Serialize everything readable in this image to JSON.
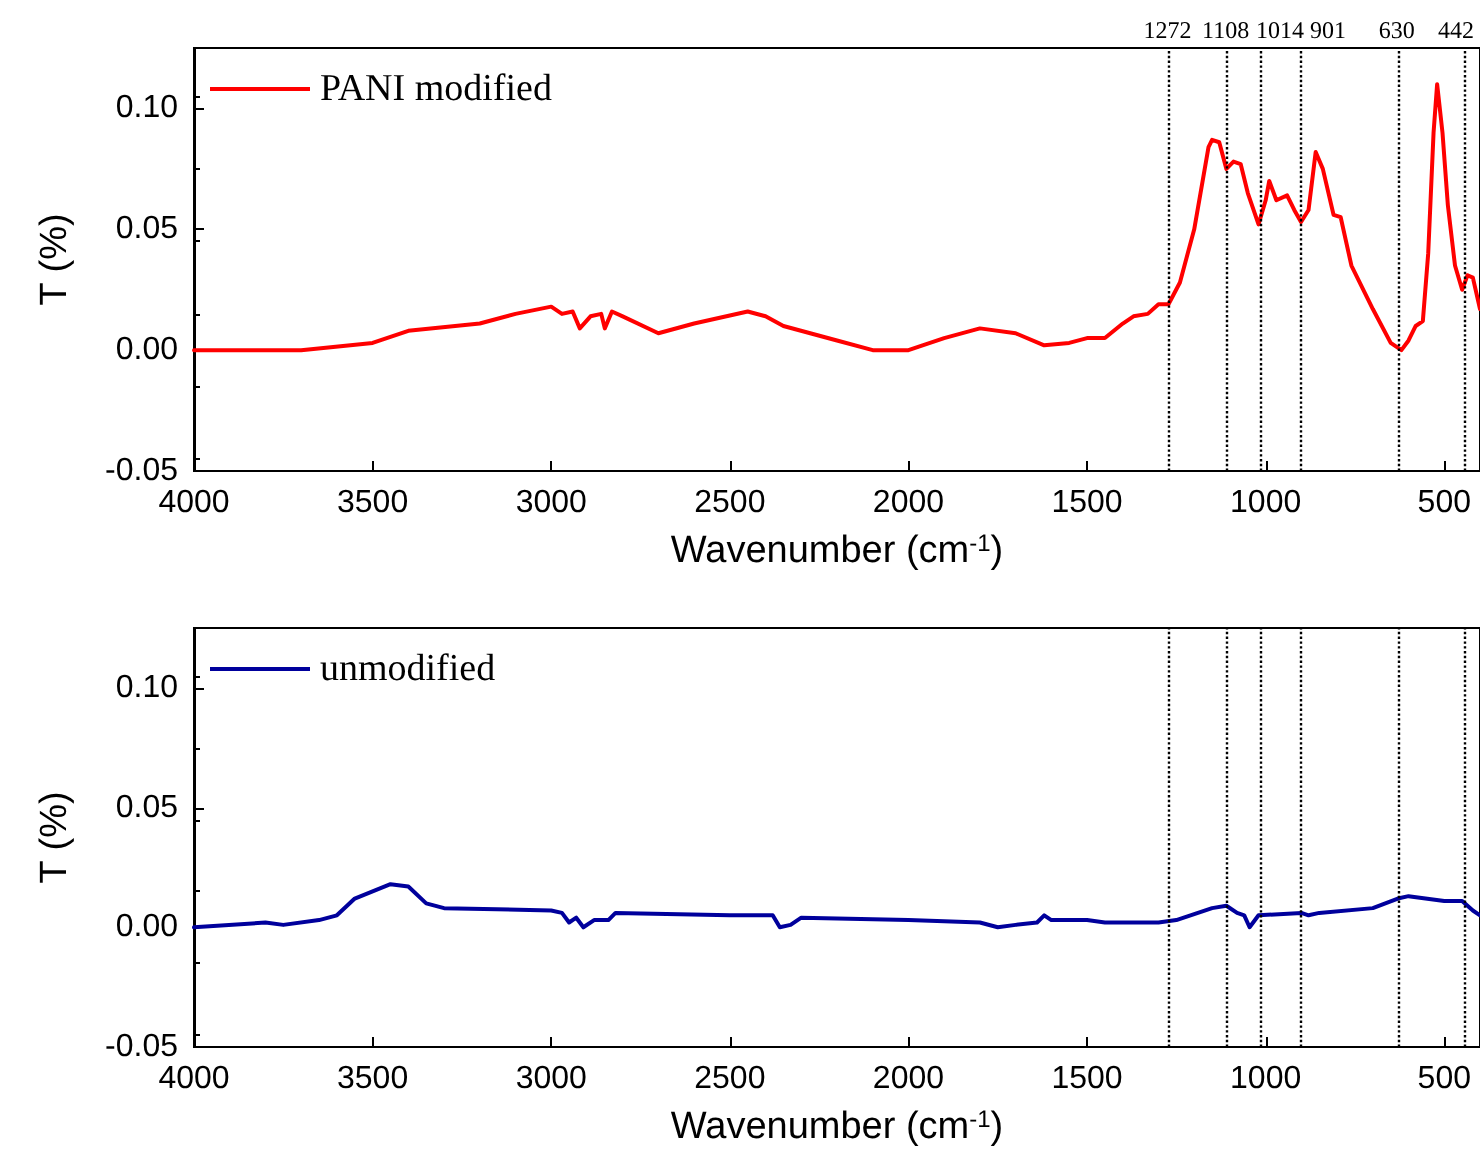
{
  "chart_data": [
    {
      "type": "line",
      "xlabel": "Wavenumber (cm$^{-1}$)",
      "ylabel": "T (%)",
      "legend": "top left",
      "grid": false,
      "marker": "none",
      "line_style": "solid",
      "xlim": [
        4000,
        400
      ],
      "xticks": [
        4000,
        3500,
        3000,
        2500,
        2000,
        1500,
        1000,
        500
      ],
      "ylim": [
        -0.05,
        0.125
      ],
      "yticks": [
        {
          "value": -0.05,
          "label": "-0.05"
        },
        {
          "value": 0,
          "label": "0.00"
        },
        {
          "value": 0.05,
          "label": "0.05"
        },
        {
          "value": 0.1,
          "label": "0.10"
        }
      ],
      "series": [
        {
          "name": "PANI modified",
          "color": "#ff0000",
          "x": [
            4000,
            3700,
            3500,
            3400,
            3200,
            3100,
            3000,
            2970,
            2940,
            2920,
            2890,
            2860,
            2850,
            2830,
            2800,
            2700,
            2600,
            2450,
            2400,
            2350,
            2200,
            2100,
            2000,
            1900,
            1800,
            1700,
            1620,
            1550,
            1500,
            1450,
            1400,
            1370,
            1330,
            1300,
            1272,
            1240,
            1200,
            1160,
            1150,
            1130,
            1110,
            1090,
            1070,
            1050,
            1020,
            1000,
            990,
            970,
            940,
            920,
            901,
            880,
            860,
            840,
            810,
            790,
            760,
            700,
            650,
            620,
            600,
            580,
            560,
            545,
            530,
            520,
            505,
            490,
            470,
            450,
            435,
            420,
            400
          ],
          "values": [
            0,
            0,
            0.003,
            0.008,
            0.011,
            0.015,
            0.018,
            0.015,
            0.016,
            0.009,
            0.014,
            0.015,
            0.009,
            0.016,
            0.014,
            0.007,
            0.011,
            0.016,
            0.014,
            0.01,
            0.004,
            0,
            0,
            0.005,
            0.009,
            0.007,
            0.002,
            0.003,
            0.005,
            0.005,
            0.011,
            0.014,
            0.015,
            0.019,
            0.019,
            0.028,
            0.05,
            0.084,
            0.087,
            0.086,
            0.075,
            0.078,
            0.077,
            0.065,
            0.052,
            0.062,
            0.07,
            0.062,
            0.064,
            0.058,
            0.053,
            0.058,
            0.082,
            0.075,
            0.056,
            0.055,
            0.035,
            0.017,
            0.003,
            0,
            0.004,
            0.01,
            0.012,
            0.04,
            0.09,
            0.11,
            0.09,
            0.06,
            0.035,
            0.025,
            0.031,
            0.03,
            0.017
          ]
        }
      ],
      "ref_lines": [
        {
          "axis": "x",
          "value": 1272,
          "label": "1272",
          "color": "#000000",
          "line_style": "dotted"
        },
        {
          "axis": "x",
          "value": 1108,
          "label": "1108",
          "color": "#000000",
          "line_style": "dotted"
        },
        {
          "axis": "x",
          "value": 1014,
          "label": "1014",
          "color": "#000000",
          "line_style": "dotted"
        },
        {
          "axis": "x",
          "value": 901,
          "label": "901",
          "color": "#000000",
          "line_style": "dotted"
        },
        {
          "axis": "x",
          "value": 630,
          "label": "630",
          "color": "#000000",
          "line_style": "dotted"
        },
        {
          "axis": "x",
          "value": 442,
          "label": "442",
          "color": "#000000",
          "line_style": "dotted"
        }
      ]
    },
    {
      "type": "line",
      "xlabel": "Wavenumber (cm$^{-1}$)",
      "ylabel": "T (%)",
      "legend": "top left",
      "grid": false,
      "marker": "none",
      "line_style": "solid",
      "xlim": [
        4000,
        400
      ],
      "xticks": [
        4000,
        3500,
        3000,
        2500,
        2000,
        1500,
        1000,
        500
      ],
      "ylim": [
        -0.05,
        0.125
      ],
      "yticks": [
        {
          "value": -0.05,
          "label": "-0.05"
        },
        {
          "value": 0,
          "label": "0.00"
        },
        {
          "value": 0.05,
          "label": "0.05"
        },
        {
          "value": 0.1,
          "label": "0.10"
        }
      ],
      "series": [
        {
          "name": "unmodified",
          "color": "#00009c",
          "x": [
            4000,
            3800,
            3750,
            3650,
            3600,
            3550,
            3450,
            3400,
            3350,
            3300,
            3000,
            2970,
            2950,
            2930,
            2910,
            2880,
            2840,
            2820,
            2500,
            2380,
            2360,
            2330,
            2300,
            2000,
            1800,
            1750,
            1700,
            1640,
            1620,
            1600,
            1500,
            1450,
            1400,
            1300,
            1250,
            1150,
            1110,
            1080,
            1060,
            1045,
            1020,
            900,
            880,
            850,
            700,
            630,
            600,
            500,
            450,
            420,
            400
          ],
          "values": [
            0,
            0.002,
            0.001,
            0.003,
            0.005,
            0.012,
            0.018,
            0.017,
            0.01,
            0.008,
            0.007,
            0.006,
            0.002,
            0.004,
            0,
            0.003,
            0.003,
            0.006,
            0.005,
            0.005,
            0,
            0.001,
            0.004,
            0.003,
            0.002,
            0,
            0.001,
            0.002,
            0.005,
            0.003,
            0.003,
            0.002,
            0.002,
            0.002,
            0.003,
            0.008,
            0.009,
            0.006,
            0.005,
            0,
            0.005,
            0.006,
            0.005,
            0.006,
            0.008,
            0.012,
            0.013,
            0.011,
            0.011,
            0.007,
            0.005
          ]
        }
      ],
      "ref_lines": [
        {
          "axis": "x",
          "value": 1272,
          "label": null,
          "color": "#000000",
          "line_style": "dotted"
        },
        {
          "axis": "x",
          "value": 1108,
          "label": null,
          "color": "#000000",
          "line_style": "dotted"
        },
        {
          "axis": "x",
          "value": 1014,
          "label": null,
          "color": "#000000",
          "line_style": "dotted"
        },
        {
          "axis": "x",
          "value": 901,
          "label": null,
          "color": "#000000",
          "line_style": "dotted"
        },
        {
          "axis": "x",
          "value": 630,
          "label": null,
          "color": "#000000",
          "line_style": "dotted"
        },
        {
          "axis": "x",
          "value": 442,
          "label": null,
          "color": "#000000",
          "line_style": "dotted"
        }
      ]
    }
  ]
}
